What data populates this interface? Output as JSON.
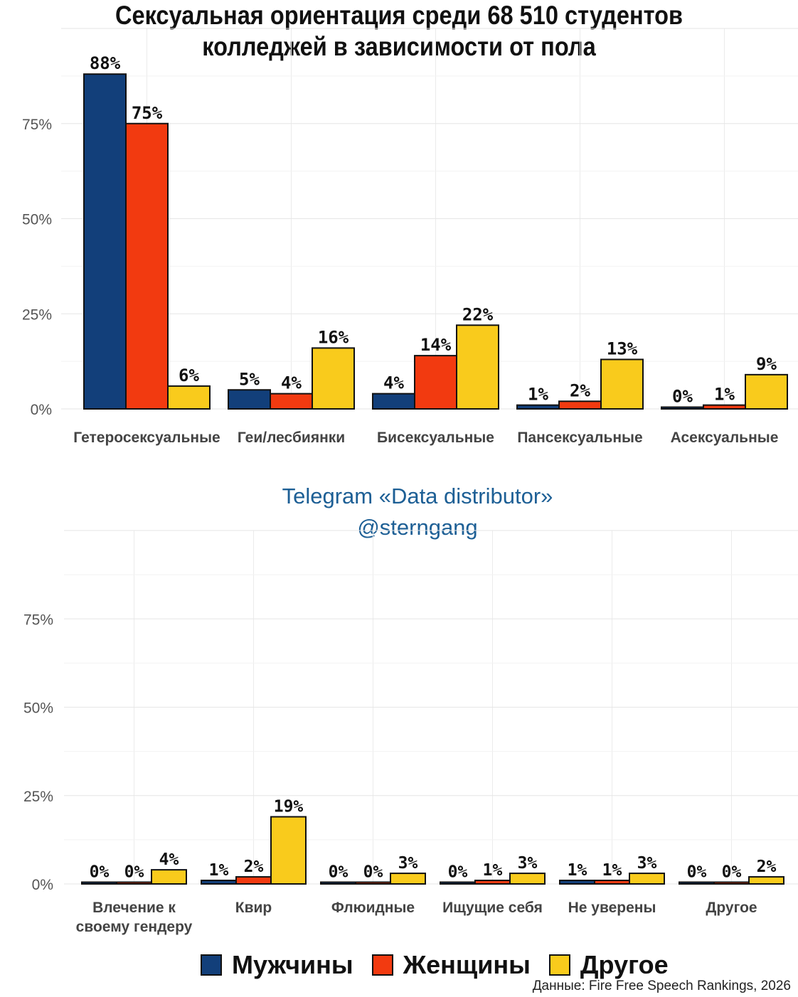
{
  "title_lines": [
    "Сексуальная ориентация среди 68 510 студентов",
    "колледжей в зависимости от пола"
  ],
  "telegram": {
    "line1": "Telegram «Data distributor»",
    "line2": "@sterngang"
  },
  "legend": [
    {
      "label": "Мужчины",
      "color": "#123f7a"
    },
    {
      "label": "Женщины",
      "color": "#f23a10"
    },
    {
      "label": "Другое",
      "color": "#f9cb1c"
    }
  ],
  "source": "Данные: Fire Free Speech Rankings, 2026",
  "chart_data": [
    {
      "type": "bar",
      "categories": [
        [
          "Гетеросексуальные"
        ],
        [
          "Геи/лесбиянки"
        ],
        [
          "Бисексуальные"
        ],
        [
          "Пансексуальные"
        ],
        [
          "Асексуальные"
        ]
      ],
      "series": [
        {
          "name": "Мужчины",
          "values": [
            88,
            5,
            4,
            1,
            0
          ],
          "labels": [
            "88%",
            "5%",
            "4%",
            "1%",
            "0%"
          ]
        },
        {
          "name": "Женщины",
          "values": [
            75,
            4,
            14,
            2,
            1
          ],
          "labels": [
            "75%",
            "4%",
            "14%",
            "2%",
            "1%"
          ]
        },
        {
          "name": "Другое",
          "values": [
            6,
            16,
            22,
            13,
            9
          ],
          "labels": [
            "6%",
            "16%",
            "22%",
            "13%",
            "9%"
          ]
        }
      ],
      "yticks": [
        0,
        25,
        50,
        75
      ],
      "ytick_labels": [
        "0%",
        "25%",
        "50%",
        "75%"
      ],
      "ylim": [
        0,
        100
      ],
      "grid": true
    },
    {
      "type": "bar",
      "categories": [
        [
          "Влечение к",
          "своему гендеру"
        ],
        [
          "Квир"
        ],
        [
          "Флюидные"
        ],
        [
          "Ищущие себя"
        ],
        [
          "Не уверены"
        ],
        [
          "Другое"
        ]
      ],
      "series": [
        {
          "name": "Мужчины",
          "values": [
            0,
            1,
            0,
            0,
            1,
            0
          ],
          "labels": [
            "0%",
            "1%",
            "0%",
            "0%",
            "1%",
            "0%"
          ]
        },
        {
          "name": "Женщины",
          "values": [
            0,
            2,
            0,
            1,
            1,
            0
          ],
          "labels": [
            "0%",
            "2%",
            "0%",
            "1%",
            "1%",
            "0%"
          ]
        },
        {
          "name": "Другое",
          "values": [
            4,
            19,
            3,
            3,
            3,
            2
          ],
          "labels": [
            "4%",
            "19%",
            "3%",
            "3%",
            "3%",
            "2%"
          ]
        }
      ],
      "yticks": [
        0,
        25,
        50,
        75
      ],
      "ytick_labels": [
        "0%",
        "25%",
        "50%",
        "75%"
      ],
      "ylim": [
        0,
        100
      ],
      "grid": true
    }
  ]
}
